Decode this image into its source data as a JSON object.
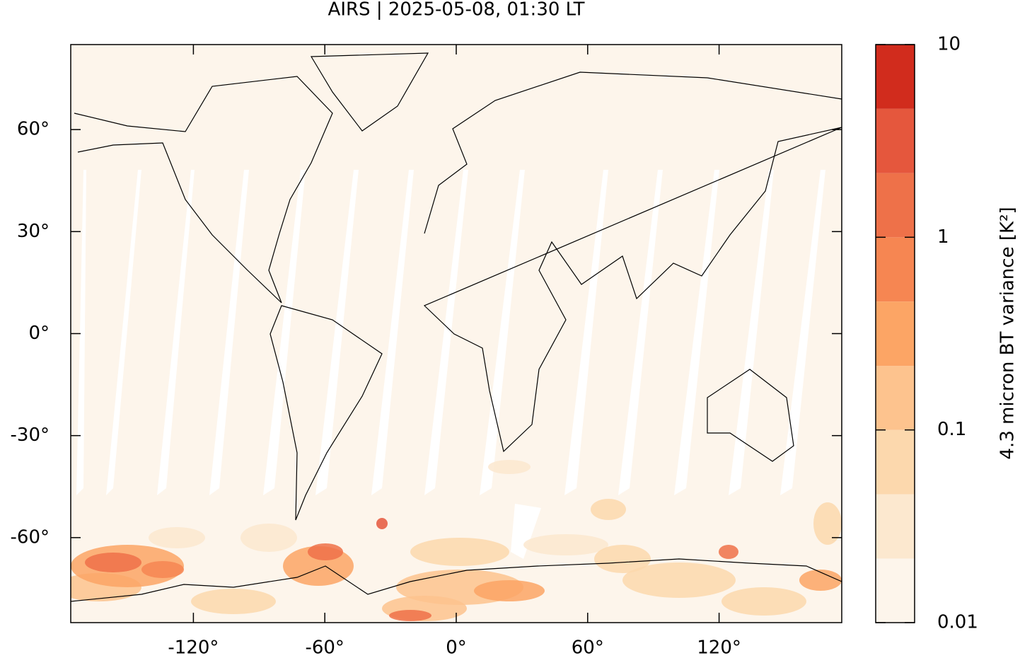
{
  "chart_data": {
    "type": "map",
    "title": "AIRS | 2025-05-08, 01:30 LT",
    "xlim": [
      -176,
      176
    ],
    "ylim": [
      -85,
      85
    ],
    "xticks": [
      {
        "value": -120,
        "label": "-120°"
      },
      {
        "value": -60,
        "label": "-60°"
      },
      {
        "value": 0,
        "label": "0°"
      },
      {
        "value": 60,
        "label": "60°"
      },
      {
        "value": 120,
        "label": "120°"
      }
    ],
    "yticks": [
      {
        "value": -60,
        "label": "-60°"
      },
      {
        "value": -30,
        "label": "-30°"
      },
      {
        "value": 0,
        "label": "0°"
      },
      {
        "value": 30,
        "label": "30°"
      },
      {
        "value": 60,
        "label": "60°"
      }
    ],
    "colorbar": {
      "label": "4.3 micron BT variance [K²]",
      "log": true,
      "clim": [
        0.01,
        10
      ],
      "levels": [
        0.01,
        0.0215,
        0.0464,
        0.1,
        0.215,
        0.464,
        1,
        2.15,
        4.64,
        10
      ],
      "colors": [
        "#fdf5eb",
        "#fce8cf",
        "#fcd8ad",
        "#fdc38e",
        "#fca565",
        "#f68652",
        "#ee7149",
        "#e5573d",
        "#d12c1d",
        "#9e0000"
      ],
      "ticks": [
        0.01,
        0.1,
        1,
        10
      ]
    }
  }
}
